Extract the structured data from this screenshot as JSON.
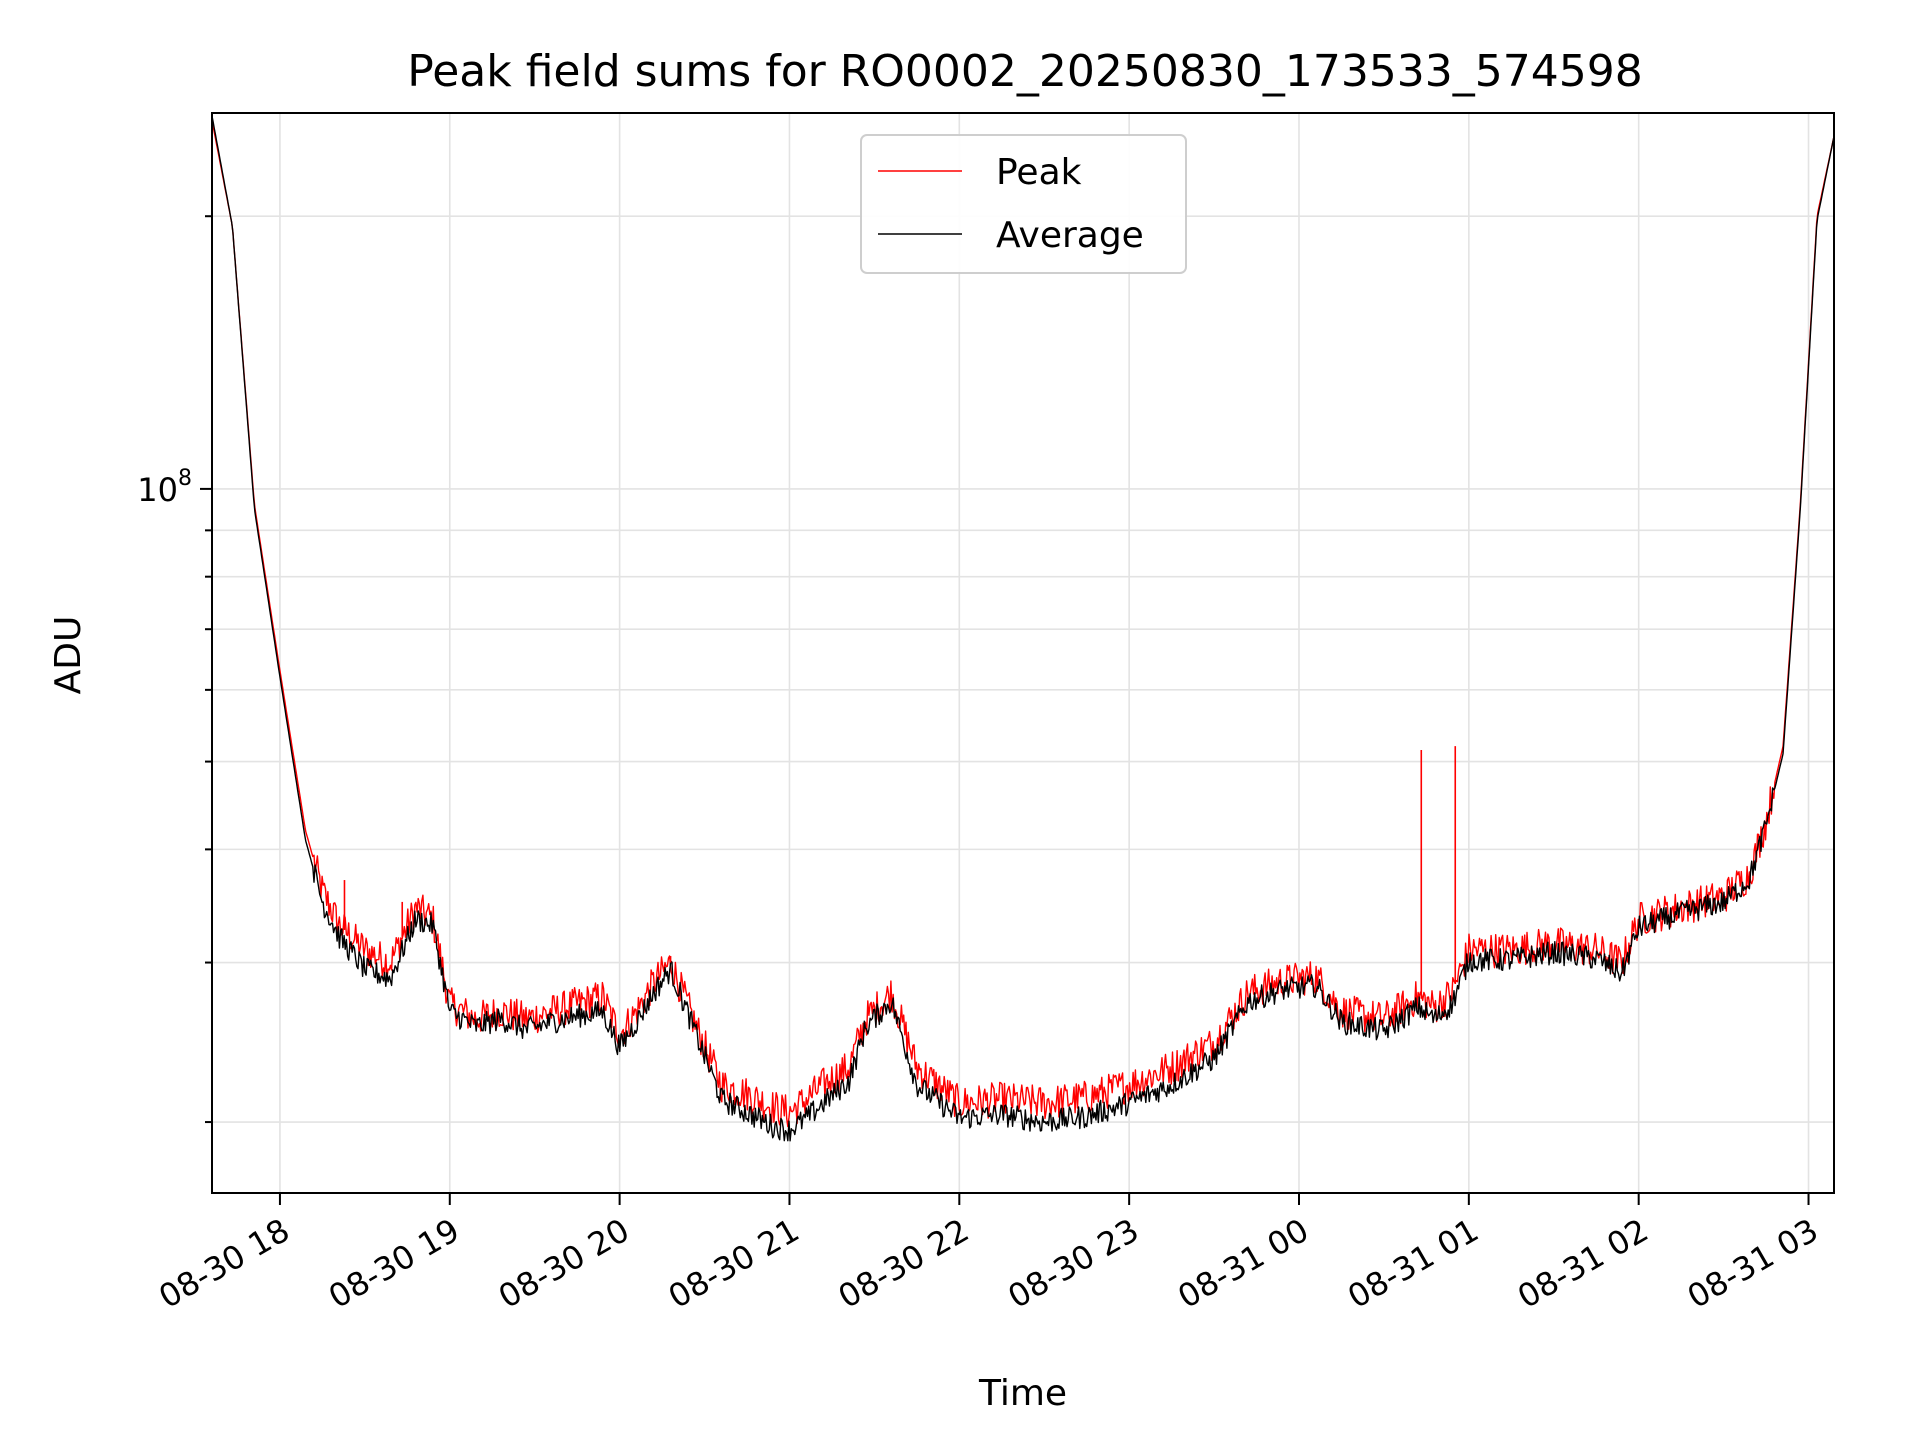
{
  "chart_data": {
    "type": "line",
    "title": "Peak field sums for RO0002_20250830_173533_574598",
    "xlabel": "Time",
    "ylabel": "ADU",
    "yscale": "log",
    "ylim": [
      16700000,
      260000000
    ],
    "xlim_hours": [
      17.6,
      27.15
    ],
    "grid": true,
    "legend_position": "upper center",
    "x_ticks": [
      {
        "hour": 18,
        "label": "08-30 18"
      },
      {
        "hour": 19,
        "label": "08-30 19"
      },
      {
        "hour": 20,
        "label": "08-30 20"
      },
      {
        "hour": 21,
        "label": "08-30 21"
      },
      {
        "hour": 22,
        "label": "08-30 22"
      },
      {
        "hour": 23,
        "label": "08-30 23"
      },
      {
        "hour": 24,
        "label": "08-31 00"
      },
      {
        "hour": 25,
        "label": "08-31 01"
      },
      {
        "hour": 26,
        "label": "08-31 02"
      },
      {
        "hour": 27,
        "label": "08-31 03"
      }
    ],
    "y_major_ticks": [
      {
        "value": 100000000,
        "label_base": "10",
        "label_exp": "8"
      }
    ],
    "y_minor_ticks": [
      20000000,
      30000000,
      40000000,
      50000000,
      60000000,
      70000000,
      80000000,
      90000000,
      200000000
    ],
    "series": [
      {
        "name": "Peak",
        "color": "#ff0000",
        "x_hours": [
          17.6,
          17.72,
          17.85,
          18.0,
          18.15,
          18.25,
          18.35,
          18.5,
          18.65,
          18.8,
          18.9,
          19.0,
          19.15,
          19.3,
          19.45,
          19.6,
          19.75,
          19.9,
          20.0,
          20.1,
          20.2,
          20.3,
          20.45,
          20.6,
          20.75,
          20.9,
          21.0,
          21.1,
          21.2,
          21.35,
          21.45,
          21.6,
          21.75,
          22.0,
          22.25,
          22.5,
          22.75,
          23.0,
          23.25,
          23.5,
          23.7,
          23.9,
          24.1,
          24.25,
          24.5,
          24.7,
          24.8,
          24.9,
          25.0,
          25.25,
          25.5,
          25.75,
          25.9,
          26.0,
          26.25,
          26.5,
          26.65,
          26.75,
          26.85,
          26.95,
          27.05,
          27.15
        ],
        "y": [
          255000000,
          195000000,
          96000000,
          63000000,
          42000000,
          36000000,
          33000000,
          31000000,
          30000000,
          34500000,
          33500000,
          27000000,
          26000000,
          26500000,
          26000000,
          26500000,
          27000000,
          27500000,
          25000000,
          26500000,
          28500000,
          30000000,
          25500000,
          22000000,
          21500000,
          20800000,
          20500000,
          21200000,
          22000000,
          23000000,
          26000000,
          27800000,
          23000000,
          21000000,
          21200000,
          21000000,
          21300000,
          22000000,
          23000000,
          24500000,
          27800000,
          28600000,
          29000000,
          26500000,
          26000000,
          27500000,
          26800000,
          27800000,
          31000000,
          31000000,
          31500000,
          31000000,
          30000000,
          33500000,
          34500000,
          35500000,
          37500000,
          43000000,
          52000000,
          95000000,
          200000000,
          245000000
        ],
        "spikes": [
          {
            "hour": 18.72,
            "value": 35000000
          },
          {
            "hour": 24.72,
            "value": 51500000
          },
          {
            "hour": 24.92,
            "value": 52000000
          },
          {
            "hour": 18.38,
            "value": 37000000
          },
          {
            "hour": 20.3,
            "value": 30500000
          }
        ]
      },
      {
        "name": "Average",
        "color": "#000000",
        "x_hours": [
          17.6,
          17.72,
          17.85,
          18.0,
          18.15,
          18.25,
          18.35,
          18.5,
          18.65,
          18.8,
          18.9,
          19.0,
          19.15,
          19.3,
          19.45,
          19.6,
          19.75,
          19.9,
          20.0,
          20.1,
          20.2,
          20.3,
          20.45,
          20.6,
          20.75,
          20.9,
          21.0,
          21.1,
          21.2,
          21.35,
          21.45,
          21.6,
          21.75,
          22.0,
          22.25,
          22.5,
          22.75,
          23.0,
          23.25,
          23.5,
          23.7,
          23.9,
          24.1,
          24.25,
          24.5,
          24.7,
          24.8,
          24.9,
          25.0,
          25.25,
          25.5,
          25.75,
          25.9,
          26.0,
          26.25,
          26.5,
          26.65,
          26.75,
          26.85,
          26.95,
          27.05,
          27.15
        ],
        "y": [
          258000000,
          195000000,
          95000000,
          62000000,
          41000000,
          35000000,
          32000000,
          29500000,
          28800000,
          33500000,
          33000000,
          26500000,
          25500000,
          26000000,
          25300000,
          25800000,
          26200000,
          26500000,
          24200000,
          25800000,
          27800000,
          29500000,
          25000000,
          21200000,
          20500000,
          19800000,
          19600000,
          20200000,
          21000000,
          22200000,
          25500000,
          27200000,
          22000000,
          20200000,
          20400000,
          20000000,
          20300000,
          21000000,
          22000000,
          23500000,
          27200000,
          28000000,
          28300000,
          25800000,
          25200000,
          26800000,
          26000000,
          27000000,
          30200000,
          30200000,
          30800000,
          30300000,
          29200000,
          32800000,
          34000000,
          35000000,
          37000000,
          42500000,
          51000000,
          94000000,
          198000000,
          245000000
        ]
      }
    ]
  }
}
